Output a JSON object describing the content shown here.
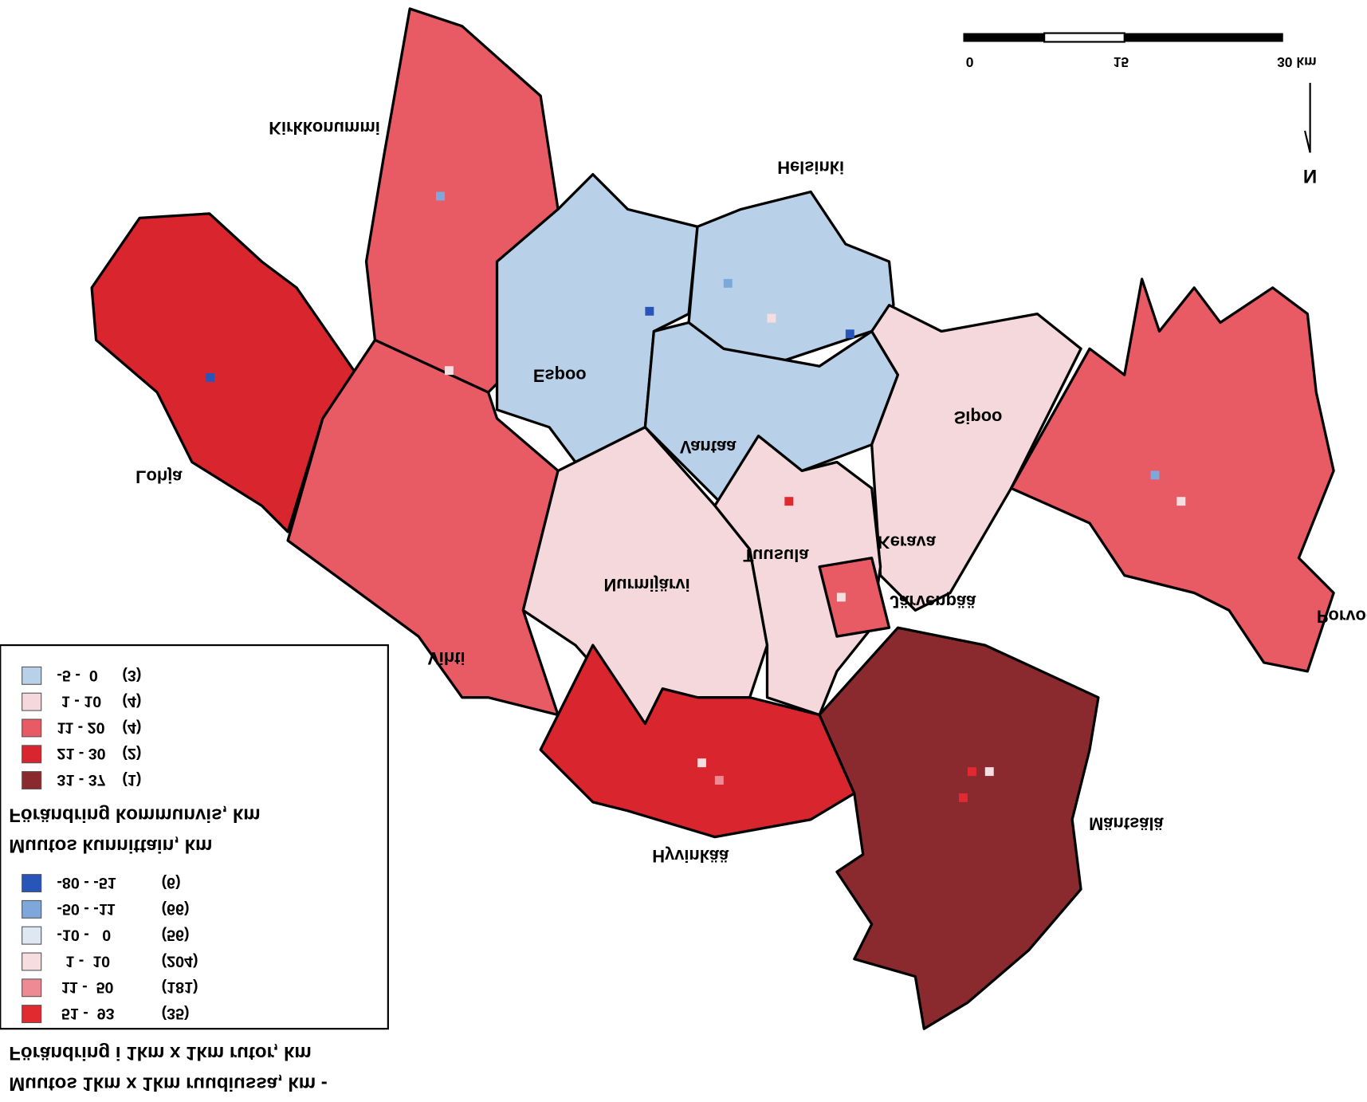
{
  "scale_bar": {
    "labels": [
      "0",
      "15",
      "30 km"
    ]
  },
  "north": "N",
  "municipalities": [
    "Kirkkonummi",
    "Helsinki",
    "Espoo",
    "Vantaa",
    "Sipoo",
    "Lohja",
    "Kerava",
    "Tuusula",
    "Nurmijärvi",
    "Järvenpää",
    "Porvoo",
    "Vihti",
    "Hyvinkää",
    "Mäntsälä"
  ],
  "legend": {
    "municipal": {
      "title": [
        "Förändring kommunvis, km",
        "Muutos kunnittain, km"
      ],
      "items": [
        {
          "range": "-5 -  0",
          "count": "(3)",
          "color": "#b8d0e8"
        },
        {
          "range": " 1 - 10",
          "count": "(4)",
          "color": "#f4d8dc"
        },
        {
          "range": "11 - 20",
          "count": "(4)",
          "color": "#e85a64"
        },
        {
          "range": "21 - 30",
          "count": "(2)",
          "color": "#d9262e"
        },
        {
          "range": "31 - 37",
          "count": "(1)",
          "color": "#8b2a2e"
        }
      ]
    },
    "grid": {
      "title": [
        "Förändring i 1km x 1km rutor, km",
        "Muutos 1km x 1km ruudiussa, km -"
      ],
      "items": [
        {
          "range": "-80 - -51",
          "count": "(6)",
          "color": "#2855b8"
        },
        {
          "range": "-50 - -11",
          "count": "(66)",
          "color": "#7ea8dc"
        },
        {
          "range": "-10 -   0",
          "count": "(56)",
          "color": "#dde8f2"
        },
        {
          "range": "  1 -  10",
          "count": "(204)",
          "color": "#f6dde0"
        },
        {
          "range": " 11 -  50",
          "count": "(181)",
          "color": "#ee8a93"
        },
        {
          "range": " 51 -  93",
          "count": "(35)",
          "color": "#e02a30"
        }
      ]
    }
  }
}
